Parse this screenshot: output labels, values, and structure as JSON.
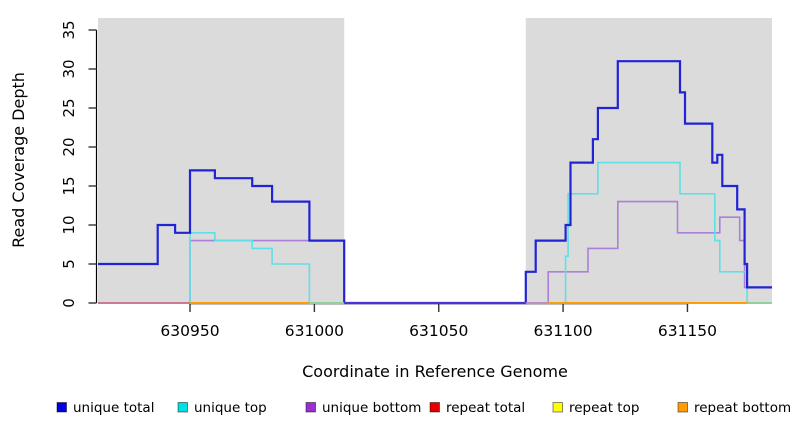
{
  "chart_data": {
    "type": "line",
    "subtype": "step-coverage-plot",
    "title": "",
    "xlabel": "Coordinate in Reference Genome",
    "ylabel": "Read Coverage Depth",
    "x_domain": [
      630913,
      631184
    ],
    "y_domain": [
      0,
      36.5
    ],
    "x_ticks": [
      630950,
      631000,
      631050,
      631100,
      631150
    ],
    "y_ticks": [
      0,
      5,
      10,
      15,
      20,
      25,
      30,
      35
    ],
    "grid": "off",
    "legend_position": "bottom",
    "background_color": "#ffffff",
    "shaded_region_color": "#dbdbdb",
    "shaded_regions": [
      {
        "from": 630913,
        "to": 631012
      },
      {
        "from": 631085,
        "to": 631184
      }
    ],
    "series": [
      {
        "name": "repeat total",
        "color": "#e03050",
        "legend_color": "#e60000",
        "width": 1.4,
        "segments": [
          [
            630913,
            631184,
            0
          ]
        ]
      },
      {
        "name": "repeat top",
        "color": "#ffec00",
        "legend_color": "#ffff00",
        "width": 1.4,
        "segments": [
          [
            630913,
            631184,
            0
          ]
        ]
      },
      {
        "name": "repeat bottom",
        "color": "#ff9d00",
        "legend_color": "#ff9d00",
        "width": 1.8,
        "segments": [
          [
            630913,
            631184,
            0
          ]
        ]
      },
      {
        "name": "unique bottom",
        "color": "#aa80d8",
        "legend_color": "#9b2fd0",
        "width": 1.6,
        "segments": [
          [
            630913,
            630950,
            0
          ],
          [
            630950,
            631012,
            8
          ],
          [
            631012,
            631094,
            0
          ],
          [
            631094,
            631110,
            4
          ],
          [
            631110,
            631122,
            7
          ],
          [
            631122,
            631146,
            13
          ],
          [
            631146,
            631163,
            9
          ],
          [
            631163,
            631171,
            11
          ],
          [
            631171,
            631173,
            8
          ],
          [
            631173,
            631184,
            2
          ]
        ]
      },
      {
        "name": "unique top",
        "color": "#5fdfe6",
        "legend_color": "#00e0e0",
        "width": 1.6,
        "segments": [
          [
            630913,
            630950,
            0
          ],
          [
            630950,
            630960,
            9
          ],
          [
            630960,
            630975,
            8
          ],
          [
            630975,
            630983,
            7
          ],
          [
            630983,
            630998,
            5
          ],
          [
            630998,
            631101,
            0
          ],
          [
            631101,
            631102,
            6
          ],
          [
            631102,
            631114,
            14
          ],
          [
            631114,
            631147,
            18
          ],
          [
            631147,
            631161,
            14
          ],
          [
            631161,
            631163,
            8
          ],
          [
            631163,
            631174,
            4
          ],
          [
            631174,
            631184,
            0
          ]
        ]
      },
      {
        "name": "unique total",
        "color": "#2323d6",
        "legend_color": "#0000e6",
        "width": 2.2,
        "segments": [
          [
            630913,
            630937,
            5
          ],
          [
            630937,
            630944,
            10
          ],
          [
            630944,
            630950,
            9
          ],
          [
            630950,
            630960,
            17
          ],
          [
            630960,
            630975,
            16
          ],
          [
            630975,
            630983,
            15
          ],
          [
            630983,
            630998,
            13
          ],
          [
            630998,
            631012,
            8
          ],
          [
            631012,
            631085,
            0
          ],
          [
            631085,
            631089,
            4
          ],
          [
            631089,
            631101,
            8
          ],
          [
            631101,
            631103,
            10
          ],
          [
            631103,
            631112,
            18
          ],
          [
            631112,
            631114,
            21
          ],
          [
            631114,
            631122,
            25
          ],
          [
            631122,
            631147,
            31
          ],
          [
            631147,
            631149,
            27
          ],
          [
            631149,
            631160,
            23
          ],
          [
            631160,
            631162,
            18
          ],
          [
            631162,
            631164,
            19
          ],
          [
            631164,
            631170,
            15
          ],
          [
            631170,
            631173,
            12
          ],
          [
            631173,
            631174,
            5
          ],
          [
            631174,
            631184,
            2
          ]
        ]
      }
    ],
    "baseline_overlays": [
      {
        "from": 630913,
        "to": 630950,
        "color": "#cf7390"
      },
      {
        "from": 630950,
        "to": 630998,
        "color": "#ff9d00"
      },
      {
        "from": 630998,
        "to": 631012,
        "color": "#8bd4a0"
      },
      {
        "from": 631012,
        "to": 631085,
        "color": "#5136d4"
      },
      {
        "from": 631085,
        "to": 631094,
        "color": "#c887c3"
      },
      {
        "from": 631094,
        "to": 631174,
        "color": "#ff9d00"
      },
      {
        "from": 631174,
        "to": 631184,
        "color": "#8bd4a0"
      }
    ],
    "legend_order": [
      "unique total",
      "unique top",
      "unique bottom",
      "repeat total",
      "repeat top",
      "repeat bottom"
    ]
  }
}
